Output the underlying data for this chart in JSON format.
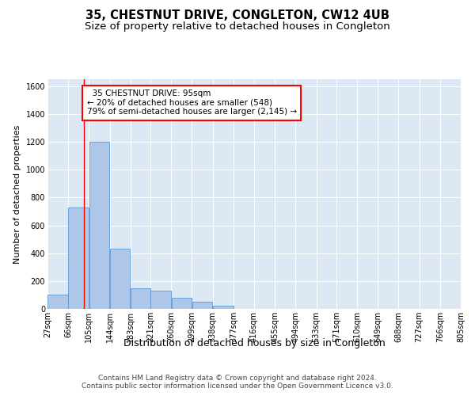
{
  "title": "35, CHESTNUT DRIVE, CONGLETON, CW12 4UB",
  "subtitle": "Size of property relative to detached houses in Congleton",
  "xlabel": "Distribution of detached houses by size in Congleton",
  "ylabel": "Number of detached properties",
  "bar_color": "#aec6e8",
  "bar_edge_color": "#5b9bd5",
  "background_color": "#dce9f5",
  "annotation_text": "  35 CHESTNUT DRIVE: 95sqm\n← 20% of detached houses are smaller (548)\n79% of semi-detached houses are larger (2,145) →",
  "property_sqm": 95,
  "bins": [
    27,
    66,
    105,
    144,
    183,
    221,
    260,
    299,
    338,
    377,
    416,
    455,
    494,
    533,
    571,
    610,
    649,
    688,
    727,
    766,
    805
  ],
  "bin_labels": [
    "27sqm",
    "66sqm",
    "105sqm",
    "144sqm",
    "183sqm",
    "221sqm",
    "260sqm",
    "299sqm",
    "338sqm",
    "377sqm",
    "416sqm",
    "455sqm",
    "494sqm",
    "533sqm",
    "571sqm",
    "610sqm",
    "649sqm",
    "688sqm",
    "727sqm",
    "766sqm",
    "805sqm"
  ],
  "heights": [
    100,
    730,
    1200,
    430,
    150,
    130,
    80,
    50,
    20,
    0,
    0,
    0,
    0,
    0,
    0,
    0,
    0,
    0,
    0,
    0
  ],
  "ylim": [
    0,
    1650
  ],
  "yticks": [
    0,
    200,
    400,
    600,
    800,
    1000,
    1200,
    1400,
    1600
  ],
  "footer": "Contains HM Land Registry data © Crown copyright and database right 2024.\nContains public sector information licensed under the Open Government Licence v3.0.",
  "title_fontsize": 10.5,
  "subtitle_fontsize": 9.5,
  "ylabel_fontsize": 8,
  "xlabel_fontsize": 9,
  "annot_fontsize": 7.5,
  "footer_fontsize": 6.5,
  "tick_fontsize": 7
}
